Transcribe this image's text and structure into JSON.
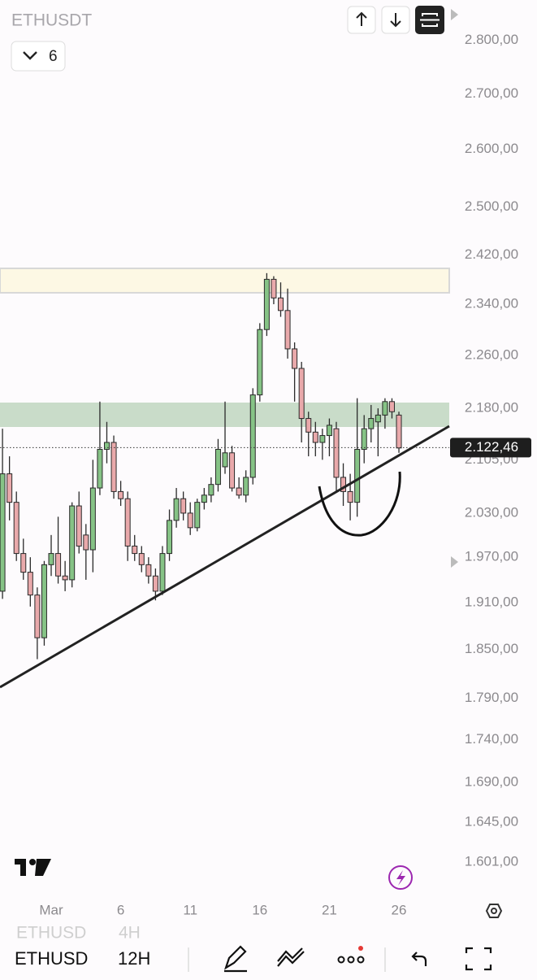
{
  "ui": {
    "symbol": "ETHUSDT",
    "interval_button": "6",
    "bottom_symbol": "ETHUSD",
    "bottom_interval": "12H",
    "ghost_symbol": "ETHUSD",
    "ghost_interval": "4H"
  },
  "chart_data": {
    "type": "candlestick",
    "log_scale": true,
    "up_color": "#86c386",
    "down_color": "#e9a9ab",
    "x": [
      -2.5,
      -2,
      -1.5,
      -1,
      -0.5,
      0,
      0.5,
      1,
      1.5,
      2,
      2.5,
      3,
      3.5,
      4,
      4.5,
      5,
      5.5,
      6,
      6.5,
      7,
      7.5,
      8,
      8.5,
      9,
      9.5,
      10,
      10.5,
      11,
      11.5,
      12,
      12.5,
      13,
      13.5,
      14,
      14.5,
      15,
      15.5,
      16,
      16.5,
      17,
      17.5,
      18,
      18.5,
      19,
      19.5,
      20,
      20.5,
      21,
      21.5,
      22,
      22.5,
      23,
      23.5,
      24,
      24.5,
      25,
      25.5,
      26
    ],
    "open": [
      1925,
      2085,
      2045,
      1975,
      1950,
      1920,
      1865,
      1960,
      1975,
      1945,
      1940,
      2040,
      2000,
      1980,
      2065,
      2120,
      2130,
      2060,
      2050,
      1985,
      1975,
      1960,
      1945,
      1925,
      1975,
      2020,
      2050,
      2030,
      2010,
      2045,
      2055,
      2070,
      2095,
      2115,
      2065,
      2055,
      2080,
      2200,
      2300,
      2380,
      2350,
      2330,
      2270,
      2240,
      2165,
      2145,
      2130,
      2140,
      2150,
      2080,
      2060,
      2045,
      2120,
      2150,
      2160,
      2170,
      2190,
      2170
    ],
    "high": [
      2150,
      2110,
      2060,
      1995,
      1970,
      1930,
      1965,
      2000,
      2025,
      1965,
      2045,
      2060,
      2015,
      2105,
      2190,
      2160,
      2140,
      2075,
      2060,
      2000,
      1985,
      1970,
      1955,
      1985,
      2035,
      2065,
      2060,
      2045,
      2050,
      2065,
      2080,
      2135,
      2190,
      2125,
      2080,
      2090,
      2210,
      2310,
      2390,
      2385,
      2375,
      2365,
      2280,
      2250,
      2175,
      2160,
      2150,
      2165,
      2160,
      2100,
      2085,
      2195,
      2170,
      2185,
      2180,
      2195,
      2195,
      2175
    ],
    "low": [
      1915,
      2020,
      1965,
      1940,
      1905,
      1838,
      1855,
      1945,
      1935,
      1925,
      1930,
      1975,
      1940,
      1950,
      2055,
      2100,
      2050,
      2040,
      1965,
      1965,
      1950,
      1935,
      1913,
      1920,
      1965,
      2010,
      2020,
      2000,
      2005,
      2035,
      2045,
      2060,
      2085,
      2060,
      2050,
      2045,
      2070,
      2190,
      2290,
      2340,
      2320,
      2255,
      2190,
      2130,
      2110,
      2110,
      2105,
      2110,
      2060,
      2040,
      2020,
      2025,
      2100,
      2130,
      2110,
      2150,
      2165,
      2115
    ],
    "close": [
      2085,
      2045,
      1975,
      1950,
      1920,
      1865,
      1960,
      1975,
      1945,
      1940,
      2040,
      1985,
      1980,
      2065,
      2120,
      2130,
      2060,
      2050,
      1985,
      1975,
      1960,
      1945,
      1925,
      1975,
      2020,
      2050,
      2030,
      2010,
      2045,
      2055,
      2070,
      2120,
      2115,
      2065,
      2055,
      2080,
      2200,
      2300,
      2380,
      2350,
      2330,
      2270,
      2240,
      2165,
      2145,
      2130,
      2140,
      2155,
      2080,
      2060,
      2045,
      2120,
      2150,
      2165,
      2170,
      2190,
      2175,
      2122
    ],
    "xlim": [
      -2.68,
      29.62
    ],
    "xticks": [
      {
        "value": 1,
        "label": "Mar"
      },
      6,
      11,
      16,
      21,
      26
    ],
    "ylim": [
      1566,
      2878
    ],
    "yticks": [
      {
        "value": 2800,
        "label": "2.800,00"
      },
      {
        "value": 2700,
        "label": "2.700,00"
      },
      {
        "value": 2600,
        "label": "2.600,00"
      },
      {
        "value": 2500,
        "label": "2.500,00"
      },
      {
        "value": 2420,
        "label": "2.420,00"
      },
      {
        "value": 2340,
        "label": "2.340,00"
      },
      {
        "value": 2260,
        "label": "2.260,00"
      },
      {
        "value": 2180,
        "label": "2.180,00"
      },
      {
        "value": 2105,
        "label": "2.105,00"
      },
      {
        "value": 2030,
        "label": "2.030,00"
      },
      {
        "value": 1970,
        "label": "1.970,00"
      },
      {
        "value": 1910,
        "label": "1.910,00"
      },
      {
        "value": 1850,
        "label": "1.850,00"
      },
      {
        "value": 1790,
        "label": "1.790,00"
      },
      {
        "value": 1740,
        "label": "1.740,00"
      },
      {
        "value": 1690,
        "label": "1.690,00"
      },
      {
        "value": 1645,
        "label": "1.645,00"
      },
      {
        "value": 1601,
        "label": "1.601,00"
      }
    ],
    "last_price": {
      "value": 2122.46,
      "label": "2.122,46"
    }
  }
}
